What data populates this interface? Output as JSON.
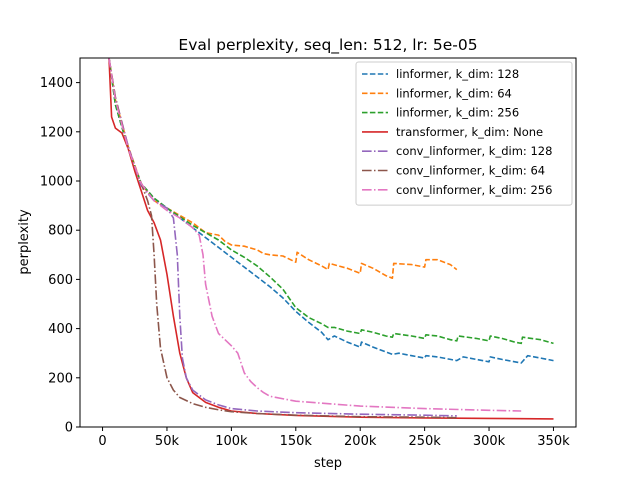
{
  "chart_data": {
    "type": "line",
    "title": "Eval perplexity, seq_len: 512, lr: 5e-05",
    "xlabel": "step",
    "ylabel": "perplexity",
    "xlim": [
      -17500,
      367500
    ],
    "ylim": [
      0,
      1500
    ],
    "xticks": [
      0,
      50000,
      100000,
      150000,
      200000,
      250000,
      300000,
      350000
    ],
    "xtick_labels": [
      "0",
      "50k",
      "100k",
      "150k",
      "200k",
      "250k",
      "300k",
      "350k"
    ],
    "yticks": [
      0,
      200,
      400,
      600,
      800,
      1000,
      1200,
      1400
    ],
    "ytick_labels": [
      "0",
      "200",
      "400",
      "600",
      "800",
      "1000",
      "1200",
      "1400"
    ],
    "grid": false,
    "legend_position": "top-right",
    "series": [
      {
        "name": "linformer, k_dim: 128",
        "color": "#1f77b4",
        "dash": "dashed",
        "x": [
          5000,
          10000,
          20000,
          30000,
          40000,
          50000,
          60000,
          70000,
          80000,
          90000,
          100000,
          110000,
          120000,
          130000,
          140000,
          150000,
          160000,
          170000,
          175000,
          180000,
          190000,
          200000,
          201000,
          210000,
          220000,
          225000,
          230000,
          240000,
          250000,
          251000,
          260000,
          270000,
          275000,
          280000,
          290000,
          300000,
          301000,
          310000,
          320000,
          325000,
          330000,
          340000,
          350000
        ],
        "y": [
          1500,
          1310,
          1130,
          990,
          930,
          890,
          850,
          810,
          770,
          730,
          690,
          650,
          610,
          570,
          525,
          470,
          425,
          385,
          355,
          370,
          345,
          325,
          345,
          325,
          305,
          295,
          300,
          290,
          280,
          290,
          285,
          275,
          270,
          285,
          275,
          265,
          285,
          275,
          265,
          260,
          290,
          280,
          270
        ]
      },
      {
        "name": "linformer, k_dim: 64",
        "color": "#ff7f0e",
        "dash": "dashed",
        "x": [
          5000,
          10000,
          20000,
          30000,
          40000,
          50000,
          60000,
          70000,
          80000,
          90000,
          95000,
          100000,
          110000,
          120000,
          125000,
          130000,
          140000,
          150000,
          151000,
          160000,
          170000,
          175000,
          176000,
          190000,
          200000,
          201000,
          210000,
          220000,
          225000,
          226000,
          240000,
          250000,
          251000,
          260000,
          270000,
          275000
        ],
        "y": [
          1500,
          1330,
          1140,
          990,
          920,
          890,
          860,
          830,
          790,
          780,
          755,
          740,
          735,
          720,
          705,
          700,
          695,
          670,
          710,
          680,
          655,
          640,
          665,
          645,
          625,
          665,
          645,
          615,
          605,
          665,
          660,
          650,
          680,
          680,
          660,
          640
        ]
      },
      {
        "name": "linformer, k_dim: 256",
        "color": "#2ca02c",
        "dash": "dashed",
        "x": [
          5000,
          10000,
          20000,
          30000,
          40000,
          50000,
          60000,
          70000,
          80000,
          90000,
          100000,
          110000,
          120000,
          130000,
          140000,
          150000,
          160000,
          170000,
          175000,
          180000,
          190000,
          200000,
          201000,
          210000,
          220000,
          225000,
          226000,
          240000,
          250000,
          251000,
          260000,
          270000,
          275000,
          276000,
          290000,
          300000,
          301000,
          310000,
          320000,
          325000,
          326000,
          340000,
          350000
        ],
        "y": [
          1500,
          1310,
          1130,
          990,
          930,
          890,
          855,
          820,
          790,
          760,
          720,
          690,
          655,
          610,
          560,
          485,
          445,
          420,
          405,
          405,
          390,
          380,
          395,
          385,
          370,
          365,
          380,
          370,
          360,
          375,
          370,
          355,
          350,
          370,
          360,
          350,
          370,
          360,
          345,
          340,
          365,
          355,
          340
        ]
      },
      {
        "name": "transformer, k_dim: None",
        "color": "#d62728",
        "dash": "solid",
        "x": [
          5000,
          7000,
          10000,
          15000,
          20000,
          25000,
          30000,
          35000,
          40000,
          45000,
          50000,
          55000,
          60000,
          65000,
          70000,
          80000,
          90000,
          100000,
          120000,
          150000,
          200000,
          250000,
          300000,
          350000
        ],
        "y": [
          1500,
          1260,
          1215,
          1195,
          1130,
          1040,
          960,
          880,
          830,
          760,
          620,
          450,
          300,
          200,
          140,
          100,
          80,
          65,
          55,
          47,
          40,
          37,
          35,
          33
        ]
      },
      {
        "name": "conv_linformer, k_dim: 128",
        "color": "#9467bd",
        "dash": "dashdot",
        "x": [
          5000,
          10000,
          20000,
          30000,
          40000,
          50000,
          55000,
          58000,
          60000,
          62000,
          65000,
          70000,
          80000,
          90000,
          100000,
          120000,
          150000,
          200000,
          250000,
          275000
        ],
        "y": [
          1500,
          1340,
          1140,
          980,
          920,
          890,
          850,
          700,
          450,
          280,
          200,
          150,
          110,
          90,
          75,
          65,
          58,
          52,
          48,
          45
        ]
      },
      {
        "name": "conv_linformer, k_dim: 64",
        "color": "#8c564b",
        "dash": "dashdot",
        "x": [
          5000,
          10000,
          20000,
          30000,
          35000,
          38000,
          40000,
          42000,
          45000,
          50000,
          55000,
          60000,
          70000,
          80000,
          90000,
          100000,
          120000,
          150000,
          200000,
          250000,
          275000
        ],
        "y": [
          1500,
          1340,
          1130,
          990,
          920,
          860,
          700,
          500,
          320,
          200,
          150,
          120,
          95,
          80,
          70,
          62,
          55,
          48,
          42,
          40,
          38
        ]
      },
      {
        "name": "conv_linformer, k_dim: 256",
        "color": "#e377c2",
        "dash": "dashdot",
        "x": [
          5000,
          10000,
          20000,
          30000,
          40000,
          50000,
          60000,
          70000,
          75000,
          78000,
          80000,
          85000,
          90000,
          100000,
          105000,
          110000,
          115000,
          120000,
          125000,
          130000,
          150000,
          200000,
          250000,
          300000,
          325000
        ],
        "y": [
          1500,
          1330,
          1130,
          990,
          920,
          880,
          850,
          810,
          780,
          700,
          580,
          450,
          380,
          330,
          300,
          220,
          185,
          160,
          140,
          125,
          105,
          85,
          75,
          68,
          65
        ]
      }
    ]
  }
}
